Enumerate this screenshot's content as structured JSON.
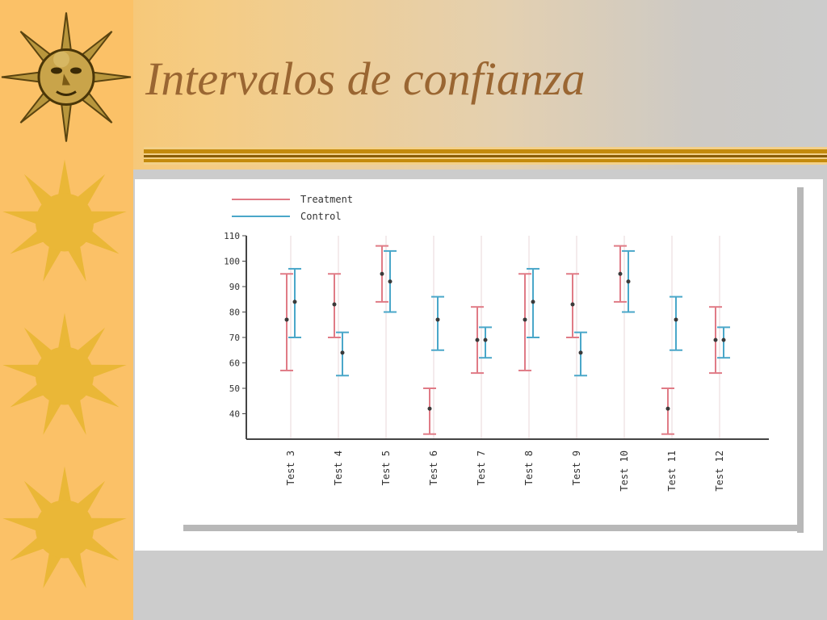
{
  "slide": {
    "title": "Intervalos de confianza",
    "colors": {
      "title": "#9a6632",
      "left_strip": "#fbc167",
      "rule_gold": "#c48a0c",
      "treatment": "#e07b86",
      "control": "#4aa7c9"
    },
    "decorations": [
      "sun-face-icon",
      "sun-icon",
      "sun-icon",
      "sun-icon"
    ]
  },
  "chart_data": {
    "type": "errorbar",
    "title": "",
    "xlabel": "",
    "ylabel": "",
    "ylim": [
      30,
      110
    ],
    "yticks": [
      40,
      50,
      60,
      70,
      80,
      90,
      100,
      110
    ],
    "grid": "vertical",
    "legend": "top-left",
    "categories": [
      "Test 3",
      "Test 4",
      "Test 5",
      "Test 6",
      "Test 7",
      "Test 8",
      "Test 9",
      "Test 10",
      "Test 11",
      "Test 12"
    ],
    "series": [
      {
        "name": "Treatment",
        "color": "#e07b86",
        "mean": [
          77,
          83,
          95,
          42,
          69,
          77,
          83,
          95,
          42,
          69
        ],
        "lower": [
          57,
          70,
          84,
          32,
          56,
          57,
          70,
          84,
          32,
          56
        ],
        "upper": [
          95,
          95,
          106,
          50,
          82,
          95,
          95,
          106,
          50,
          82
        ]
      },
      {
        "name": "Control",
        "color": "#4aa7c9",
        "mean": [
          84,
          64,
          92,
          77,
          69,
          84,
          64,
          92,
          77,
          69
        ],
        "lower": [
          70,
          55,
          80,
          65,
          62,
          70,
          55,
          80,
          65,
          62
        ],
        "upper": [
          97,
          72,
          104,
          86,
          74,
          97,
          72,
          104,
          86,
          74
        ]
      }
    ]
  }
}
